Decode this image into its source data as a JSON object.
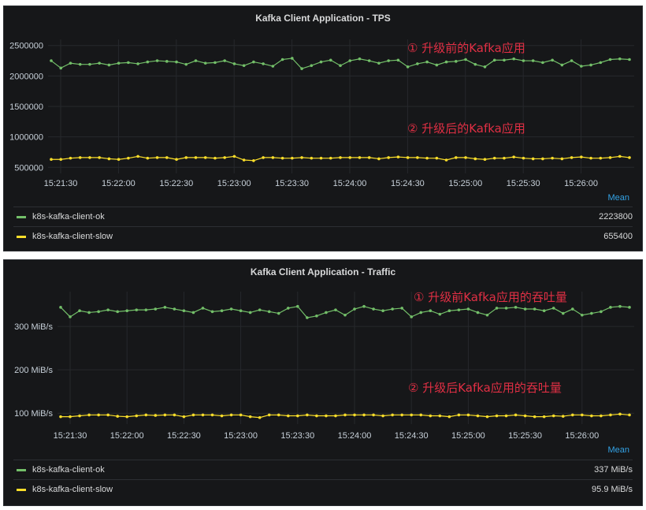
{
  "panels": [
    {
      "title": "Kafka Client Application - TPS",
      "legend_header": "Mean",
      "annotations": [
        "① 升级前的Kafka应用",
        "② 升级后的Kafka应用"
      ],
      "legend": [
        {
          "name": "k8s-kafka-client-ok",
          "value": "2223800",
          "color": "#73bf69"
        },
        {
          "name": "k8s-kafka-client-slow",
          "value": "655400",
          "color": "#fade2a"
        }
      ]
    },
    {
      "title": "Kafka Client Application - Traffic",
      "legend_header": "Mean",
      "annotations": [
        "① 升级前Kafka应用的吞吐量",
        "② 升级后Kafka应用的吞吐量"
      ],
      "legend": [
        {
          "name": "k8s-kafka-client-ok",
          "value": "337 MiB/s",
          "color": "#73bf69"
        },
        {
          "name": "k8s-kafka-client-slow",
          "value": "95.9 MiB/s",
          "color": "#fade2a"
        }
      ]
    }
  ],
  "chart_data": [
    {
      "type": "line",
      "title": "Kafka Client Application - TPS",
      "x_ticks": [
        "15:21:30",
        "15:22:00",
        "15:22:30",
        "15:23:00",
        "15:23:30",
        "15:24:00",
        "15:24:30",
        "15:25:00",
        "15:25:30",
        "15:26:00"
      ],
      "y_ticks": [
        "500000",
        "1000000",
        "1500000",
        "2000000",
        "2500000"
      ],
      "ylim": [
        400000,
        2600000
      ],
      "x_start_sec": 0,
      "x_end_sec": 310,
      "grid": true,
      "legend_position": "bottom",
      "series": [
        {
          "name": "k8s-kafka-client-ok",
          "color": "#73bf69",
          "values": [
            2250000,
            2130000,
            2210000,
            2190000,
            2190000,
            2210000,
            2180000,
            2210000,
            2220000,
            2200000,
            2230000,
            2250000,
            2240000,
            2230000,
            2190000,
            2250000,
            2210000,
            2220000,
            2250000,
            2200000,
            2170000,
            2230000,
            2200000,
            2160000,
            2270000,
            2290000,
            2120000,
            2170000,
            2230000,
            2260000,
            2170000,
            2250000,
            2280000,
            2250000,
            2210000,
            2250000,
            2260000,
            2150000,
            2200000,
            2230000,
            2180000,
            2230000,
            2240000,
            2270000,
            2190000,
            2150000,
            2260000,
            2260000,
            2280000,
            2250000,
            2250000,
            2220000,
            2260000,
            2180000,
            2250000,
            2160000,
            2180000,
            2220000,
            2270000,
            2280000,
            2270000
          ]
        },
        {
          "name": "k8s-kafka-client-slow",
          "color": "#fade2a",
          "values": [
            630000,
            630000,
            650000,
            660000,
            660000,
            660000,
            640000,
            630000,
            650000,
            680000,
            650000,
            660000,
            660000,
            630000,
            660000,
            660000,
            660000,
            650000,
            660000,
            680000,
            620000,
            610000,
            660000,
            660000,
            650000,
            650000,
            660000,
            650000,
            650000,
            650000,
            660000,
            660000,
            660000,
            660000,
            640000,
            660000,
            670000,
            660000,
            660000,
            650000,
            650000,
            620000,
            660000,
            660000,
            640000,
            630000,
            650000,
            650000,
            670000,
            650000,
            640000,
            640000,
            650000,
            640000,
            660000,
            670000,
            650000,
            650000,
            660000,
            680000,
            660000
          ]
        }
      ]
    },
    {
      "type": "line",
      "title": "Kafka Client Application - Traffic",
      "x_ticks": [
        "15:21:30",
        "15:22:00",
        "15:22:30",
        "15:23:00",
        "15:23:30",
        "15:24:00",
        "15:24:30",
        "15:25:00",
        "15:25:30",
        "15:26:00"
      ],
      "y_ticks": [
        "100 MiB/s",
        "200 MiB/s",
        "300 MiB/s"
      ],
      "y_tick_values": [
        100,
        200,
        300
      ],
      "ylim": [
        75,
        380
      ],
      "x_start_sec": 0,
      "x_end_sec": 310,
      "grid": true,
      "legend_position": "bottom",
      "series": [
        {
          "name": "k8s-kafka-client-ok",
          "color": "#73bf69",
          "values": [
            344,
            322,
            336,
            332,
            334,
            338,
            334,
            336,
            338,
            338,
            340,
            344,
            340,
            336,
            332,
            342,
            334,
            336,
            340,
            336,
            332,
            338,
            334,
            330,
            342,
            346,
            320,
            324,
            332,
            338,
            326,
            340,
            346,
            340,
            336,
            340,
            342,
            322,
            332,
            336,
            328,
            336,
            338,
            340,
            332,
            326,
            342,
            342,
            344,
            340,
            340,
            336,
            342,
            330,
            340,
            326,
            330,
            334,
            344,
            346,
            344
          ]
        },
        {
          "name": "k8s-kafka-client-slow",
          "color": "#fade2a",
          "values": [
            92,
            92,
            94,
            96,
            96,
            96,
            93,
            92,
            94,
            96,
            95,
            96,
            96,
            92,
            96,
            96,
            96,
            94,
            96,
            96,
            92,
            90,
            96,
            96,
            94,
            94,
            96,
            94,
            94,
            94,
            96,
            96,
            96,
            96,
            94,
            96,
            96,
            96,
            96,
            94,
            94,
            92,
            96,
            96,
            94,
            92,
            94,
            94,
            96,
            94,
            92,
            92,
            94,
            93,
            96,
            96,
            94,
            94,
            96,
            98,
            96
          ]
        }
      ]
    }
  ]
}
